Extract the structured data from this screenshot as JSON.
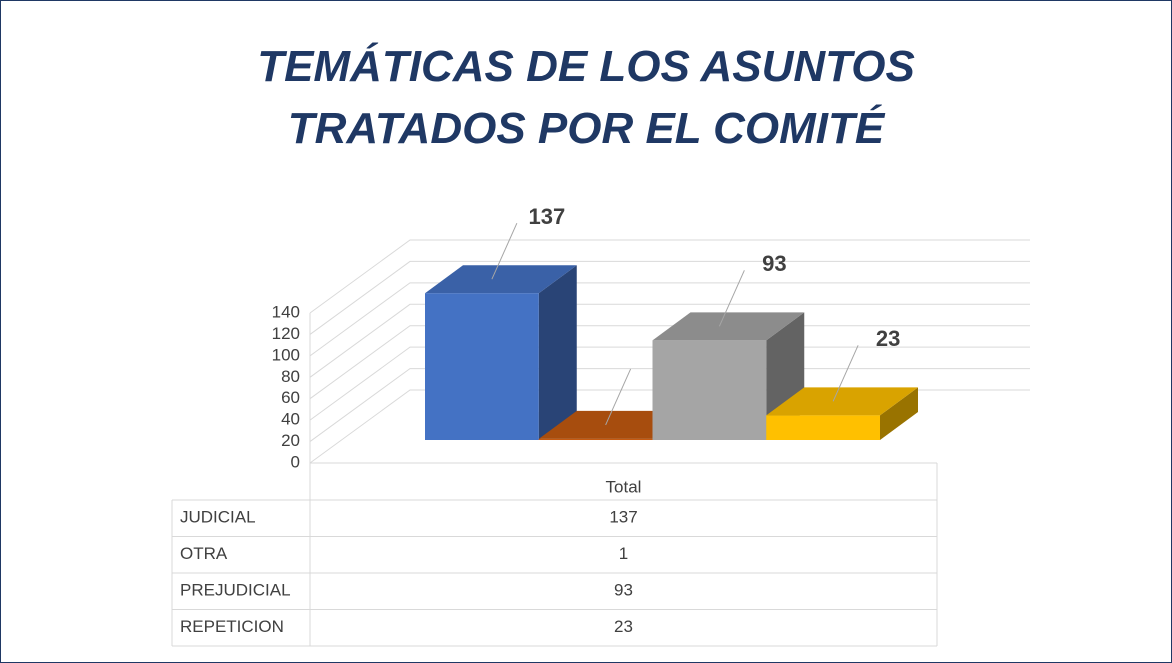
{
  "chart_data": {
    "type": "bar3d",
    "title": "TEMÁTICAS DE LOS ASUNTOS TRATADOS POR EL COMITÉ",
    "categories": [
      "Total"
    ],
    "series": [
      {
        "name": "JUDICIAL",
        "color": "#4472c4",
        "values": [
          137
        ]
      },
      {
        "name": "OTRA",
        "color": "#c55a11",
        "values": [
          1
        ]
      },
      {
        "name": "PREJUDICIAL",
        "color": "#a5a5a5",
        "values": [
          93
        ]
      },
      {
        "name": "REPETICION",
        "color": "#ffc000",
        "values": [
          23
        ]
      }
    ],
    "ylim": [
      0,
      140
    ],
    "yticks": [
      0,
      20,
      40,
      60,
      80,
      100,
      120,
      140
    ],
    "grid": true,
    "data_table": true
  }
}
